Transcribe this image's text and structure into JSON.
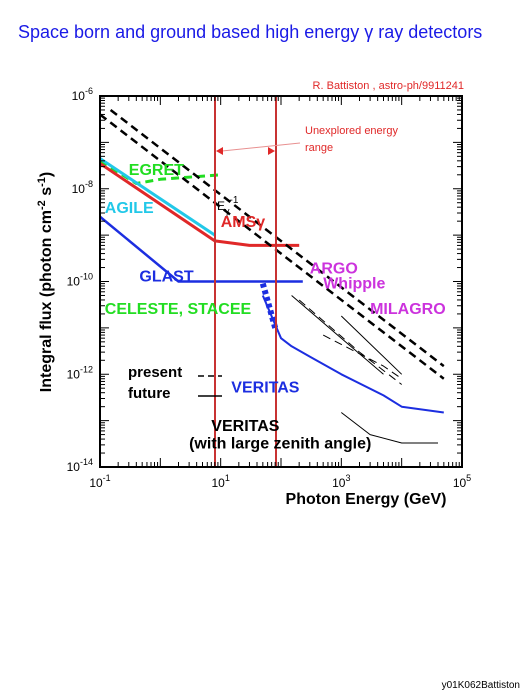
{
  "slide": {
    "title": "Space born  and ground based high energy  γ ray detectors",
    "footer_code": "y01K062Battiston"
  },
  "chart_data": {
    "type": "line",
    "xscale": "log",
    "yscale": "log",
    "xlim": [
      0.1,
      100000
    ],
    "ylim": [
      1e-14,
      1e-06
    ],
    "xlabel": "Photon Energy (GeV)",
    "ylabel": "Integral flux (photon cm-2 s-1)",
    "ylabel_parts": {
      "pre": "Integral flux (photon cm",
      "sup1": "-2",
      "mid": " s",
      "sup2": "-1",
      "post": ")"
    },
    "xticks": [
      {
        "value": 0.1,
        "base": "10",
        "exp": "-1"
      },
      {
        "value": 10,
        "base": "10",
        "exp": "1"
      },
      {
        "value": 1000,
        "base": "10",
        "exp": "3"
      },
      {
        "value": 100000,
        "base": "10",
        "exp": "5"
      }
    ],
    "yticks": [
      {
        "value": 1e-06,
        "base": "10",
        "exp": "-6"
      },
      {
        "value": 1e-08,
        "base": "10",
        "exp": "-8"
      },
      {
        "value": 1e-10,
        "base": "10",
        "exp": "-10"
      },
      {
        "value": 1e-12,
        "base": "10",
        "exp": "-12"
      },
      {
        "value": 1e-14,
        "base": "10",
        "exp": "-14"
      }
    ],
    "citation": "R. Battiston , astro-ph/9911241",
    "unexplored_label": [
      "Unexplored energy",
      "range"
    ],
    "unexplored_range": [
      8.3,
      90
    ],
    "power_law_label": {
      "base": "E",
      "sub": "γ",
      "sup": "-1"
    },
    "legend": {
      "present": "present",
      "future": "future"
    },
    "series": [
      {
        "name": "EGRET",
        "style": "present",
        "color": "#22dd22",
        "width": 3,
        "points": [
          [
            0.1,
            4e-08
          ],
          [
            0.4,
            1.3e-08
          ],
          [
            1,
            1.6e-08
          ],
          [
            10,
            2e-08
          ]
        ]
      },
      {
        "name": "AGILE",
        "style": "future",
        "color": "#22c8e8",
        "width": 3,
        "points": [
          [
            0.1,
            4.5e-08
          ],
          [
            8,
            1e-09
          ]
        ]
      },
      {
        "name": "AMSγ",
        "style": "future",
        "color": "#e02828",
        "width": 3,
        "points": [
          [
            0.1,
            3.5e-08
          ],
          [
            8,
            7.5e-10
          ],
          [
            30,
            6e-10
          ],
          [
            200,
            6e-10
          ]
        ]
      },
      {
        "name": "GLAST",
        "style": "future",
        "color": "#1c2ee0",
        "width": 2.5,
        "points": [
          [
            0.1,
            2.5e-09
          ],
          [
            2,
            1e-10
          ],
          [
            230,
            1e-10
          ]
        ]
      },
      {
        "name": "CELESTE, STACEE",
        "style": "present",
        "color": "#1c2ee0",
        "width": 6,
        "points": [
          [
            50,
            9e-11
          ],
          [
            80,
            1e-11
          ]
        ]
      },
      {
        "name": "VERITAS",
        "style": "future",
        "color": "#1c2ee0",
        "width": 2,
        "points": [
          [
            50,
            5e-11
          ],
          [
            100,
            6e-12
          ],
          [
            150,
            4e-12
          ],
          [
            300,
            2.4e-12
          ],
          [
            1000,
            1e-12
          ],
          [
            5000,
            3.5e-13
          ],
          [
            10000,
            2e-13
          ],
          [
            50000,
            1.5e-13
          ]
        ]
      },
      {
        "name": "VERITAS (with large zenith angle)",
        "style": "future",
        "color": "#000000",
        "width": 1,
        "points": [
          [
            1000,
            1.5e-13
          ],
          [
            3000,
            5e-14
          ],
          [
            10000,
            3.3e-14
          ],
          [
            40000,
            3.3e-14
          ]
        ]
      },
      {
        "name": "ARGO",
        "style": "future",
        "color": "#000000",
        "width": 1,
        "points": [
          [
            150,
            5e-11
          ],
          [
            1000,
            6e-12
          ],
          [
            5000,
            1e-12
          ]
        ]
      },
      {
        "name": "Whipple",
        "style": "present",
        "color": "#000000",
        "width": 1,
        "points": [
          [
            200,
            4e-11
          ],
          [
            2000,
            3e-12
          ],
          [
            10000,
            6e-13
          ]
        ]
      },
      {
        "name": "MILAGRO",
        "style": "present",
        "color": "#000000",
        "width": 1,
        "points": [
          [
            500,
            7e-12
          ],
          [
            5000,
            1.5e-12
          ],
          [
            10000,
            8e-13
          ]
        ]
      },
      {
        "name": "MILAGRO",
        "style": "future",
        "color": "#000000",
        "width": 1,
        "points": [
          [
            1000,
            1.8e-11
          ],
          [
            10000,
            1e-12
          ]
        ]
      },
      {
        "name": "Eγ-1 reference",
        "style": "present",
        "color": "#000000",
        "width": 2.5,
        "points": [
          [
            0.1,
            4e-07
          ],
          [
            50000,
            8e-13
          ]
        ]
      },
      {
        "name": "Eγ-1 reference",
        "style": "present",
        "color": "#000000",
        "width": 2.5,
        "points": [
          [
            0.15,
            5e-07
          ],
          [
            50000,
            1.5e-12
          ]
        ]
      }
    ],
    "labels": [
      {
        "text": "EGRET",
        "color": "#22dd22",
        "x": 0.3,
        "y": 2e-08
      },
      {
        "text": "AGILE",
        "color": "#22c8e8",
        "x": 0.12,
        "y": 3e-09
      },
      {
        "text": "AMSγ",
        "color": "#e02828",
        "x": 10,
        "y": 1.5e-09
      },
      {
        "text": "GLAST",
        "color": "#1c2ee0",
        "x": 0.45,
        "y": 1e-10
      },
      {
        "text": "CELESTE, STACEE",
        "color": "#22dd22",
        "x": 0.12,
        "y": 2e-11
      },
      {
        "text": "ARGO",
        "color": "#cc33dd",
        "x": 300,
        "y": 1.5e-10
      },
      {
        "text": "Whipple",
        "color": "#cc33dd",
        "x": 500,
        "y": 7e-11
      },
      {
        "text": "MILAGRO",
        "color": "#cc33dd",
        "x": 3000,
        "y": 2e-11
      },
      {
        "text": "VERITAS",
        "color": "#1c2ee0",
        "x": 15,
        "y": 4e-13
      },
      {
        "text": "VERITAS",
        "color": "#000000",
        "x": 7,
        "y": 6e-14
      },
      {
        "text": "(with large zenith angle)",
        "color": "#000000",
        "x": 3,
        "y": 2.5e-14
      }
    ],
    "grid": false
  }
}
